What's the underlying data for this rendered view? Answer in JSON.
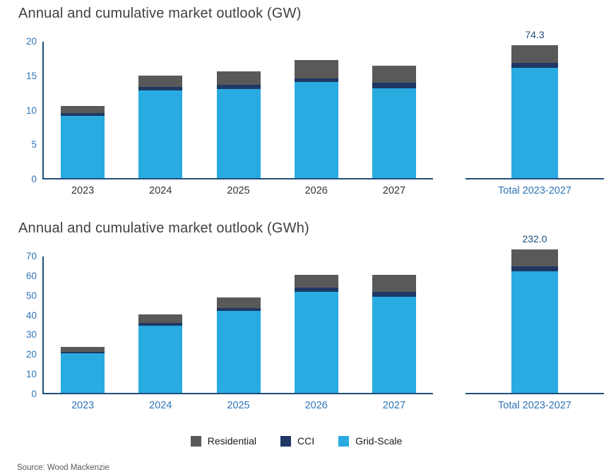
{
  "page": {
    "source_note": "Source: Wood Mackenzie"
  },
  "legend": {
    "position": "bottom-center",
    "items": [
      {
        "label": "Residential",
        "color": "#595959"
      },
      {
        "label": "CCI",
        "color": "#1f3864"
      },
      {
        "label": "Grid-Scale",
        "color": "#29abe2"
      }
    ]
  },
  "chart_data": [
    {
      "type": "bar",
      "stacked": true,
      "title": "Annual and cumulative market outlook (GW)",
      "unit": "GW",
      "categories": [
        "2023",
        "2024",
        "2025",
        "2026",
        "2027"
      ],
      "series": [
        {
          "name": "Grid-Scale",
          "color": "#29abe2",
          "values": [
            9.0,
            12.7,
            12.9,
            14.0,
            13.0
          ]
        },
        {
          "name": "CCI",
          "color": "#1f3864",
          "values": [
            0.4,
            0.5,
            0.6,
            0.5,
            0.8
          ]
        },
        {
          "name": "Residential",
          "color": "#595959",
          "values": [
            1.1,
            1.7,
            2.0,
            2.6,
            2.5
          ]
        }
      ],
      "annual_totals": [
        10.5,
        14.9,
        15.5,
        17.1,
        16.3
      ],
      "ylim": [
        0,
        20
      ],
      "yticks": [
        0,
        5,
        10,
        15,
        20
      ],
      "grid": false,
      "total": {
        "label": "Total 2023-2027",
        "value": "74.3",
        "segments": [
          61.6,
          2.8,
          9.9
        ],
        "display_height_units": 19.3
      }
    },
    {
      "type": "bar",
      "stacked": true,
      "title": "Annual and cumulative market outlook (GWh)",
      "unit": "GWh",
      "categories": [
        "2023",
        "2024",
        "2025",
        "2026",
        "2027"
      ],
      "series": [
        {
          "name": "Grid-Scale",
          "color": "#29abe2",
          "values": [
            20.0,
            34.0,
            41.5,
            51.5,
            49.0
          ]
        },
        {
          "name": "CCI",
          "color": "#1f3864",
          "values": [
            1.0,
            1.5,
            1.5,
            2.0,
            2.5
          ]
        },
        {
          "name": "Residential",
          "color": "#595959",
          "values": [
            2.5,
            4.5,
            5.5,
            6.5,
            8.5
          ]
        }
      ],
      "annual_totals": [
        23.5,
        40.0,
        48.5,
        60.0,
        60.0
      ],
      "ylim": [
        0,
        70
      ],
      "yticks": [
        0,
        10,
        20,
        30,
        40,
        50,
        60,
        70
      ],
      "grid": false,
      "total": {
        "label": "Total 2023-2027",
        "value": "232.0",
        "segments": [
          196.0,
          8.5,
          27.5
        ],
        "display_height_units": 73.0
      }
    }
  ]
}
